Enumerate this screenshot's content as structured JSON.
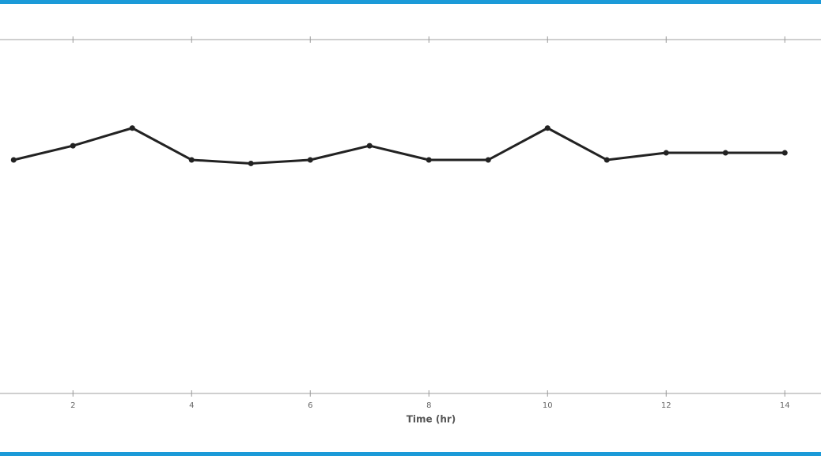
{
  "chart_data": {
    "type": "line",
    "x_label": "Time (hr)",
    "x": [
      1,
      2,
      3,
      4,
      5,
      6,
      7,
      8,
      9,
      10,
      11,
      12,
      13,
      14
    ],
    "series": [
      {
        "color": "#222222",
        "values": [
          6.6,
          7.0,
          7.5,
          6.6,
          6.5,
          6.6,
          7.0,
          6.6,
          6.6,
          7.5,
          6.6,
          6.8,
          6.8,
          6.8
        ]
      }
    ],
    "xlim": [
      0.77,
      14.61
    ],
    "xticks": [
      2,
      4,
      6,
      8,
      10,
      12,
      14
    ],
    "ylim": [
      0,
      10
    ],
    "border_color": "#1b9ad8"
  }
}
